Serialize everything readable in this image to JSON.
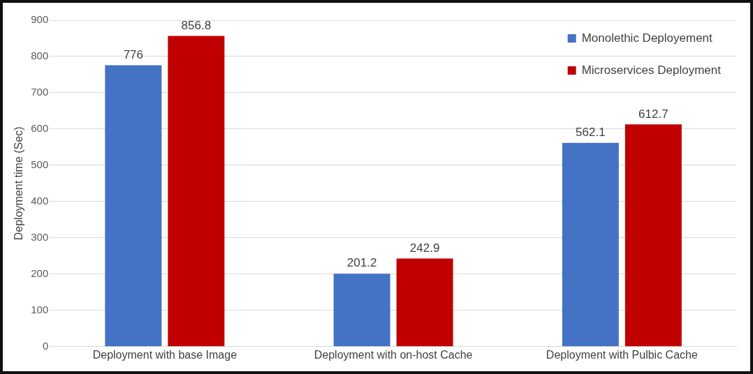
{
  "chart_data": {
    "type": "bar",
    "ylabel": "Deployment time (Sec)",
    "categories": [
      "Deployment with base Image",
      "Deployment with on-host Cache",
      "Deployment with Pulbic Cache"
    ],
    "series": [
      {
        "name": "Monolethic Deployement",
        "color": "#4472c4",
        "values": [
          776,
          201.2,
          562.1
        ]
      },
      {
        "name": "Microservices Deployment",
        "color": "#c00000",
        "values": [
          856.8,
          242.9,
          612.7
        ]
      }
    ],
    "ylim": [
      0,
      900
    ],
    "yticks": [
      0,
      100,
      200,
      300,
      400,
      500,
      600,
      700,
      800,
      900
    ],
    "grid": "y",
    "legend": "top right",
    "data_labels": true
  }
}
